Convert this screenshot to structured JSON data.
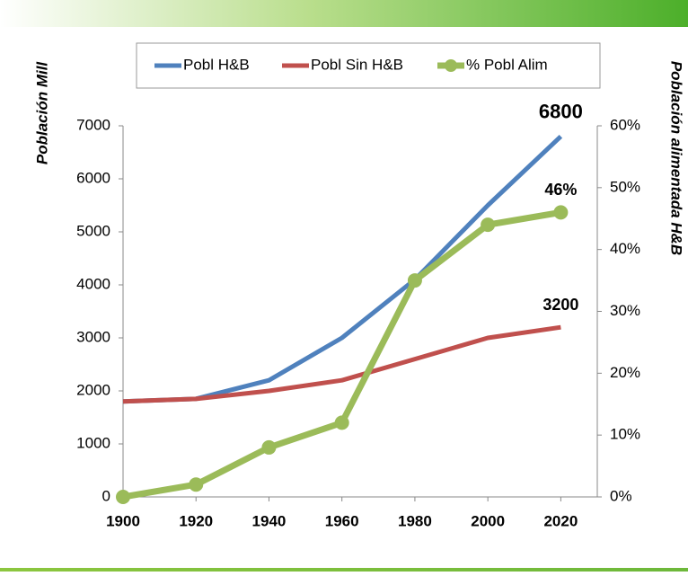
{
  "chart_data": {
    "type": "line",
    "y_label": "Población Mill",
    "y2_label": "Población alimentada H&B",
    "x": [
      1900,
      1920,
      1940,
      1960,
      1980,
      2000,
      2020
    ],
    "xlim": [
      1900,
      2030
    ],
    "xticks": [
      1900,
      1920,
      1940,
      1960,
      1980,
      2000,
      2020
    ],
    "ylim": [
      0,
      7000
    ],
    "yticks": [
      0,
      1000,
      2000,
      3000,
      4000,
      5000,
      6000,
      7000
    ],
    "y2lim": [
      0,
      60
    ],
    "y2ticks": [
      {
        "value": 0,
        "label": "0%"
      },
      {
        "value": 10,
        "label": "10%"
      },
      {
        "value": 20,
        "label": "20%"
      },
      {
        "value": 30,
        "label": "30%"
      },
      {
        "value": 40,
        "label": "40%"
      },
      {
        "value": 50,
        "label": "50%"
      },
      {
        "value": 60,
        "label": "60%"
      }
    ],
    "legend": "top",
    "series": [
      {
        "name": "Pobl H&B",
        "color": "#4f81bd",
        "values": [
          1800,
          1850,
          2200,
          3000,
          4100,
          5500,
          6800
        ],
        "value_labels": [
          null,
          null,
          null,
          null,
          null,
          null,
          "6800"
        ]
      },
      {
        "name": "Pobl Sin H&B",
        "color": "#c0504d",
        "values": [
          1800,
          1850,
          2000,
          2200,
          2600,
          3000,
          3200
        ],
        "value_labels": [
          null,
          null,
          null,
          null,
          null,
          null,
          "3200"
        ]
      },
      {
        "name": "% Pobl Alim",
        "color": "#9bbb59",
        "axis": "y2",
        "marker": "circle",
        "values": [
          0,
          2,
          8,
          12,
          35,
          44,
          46
        ],
        "value_labels": [
          null,
          null,
          null,
          null,
          null,
          null,
          "46%"
        ]
      }
    ]
  }
}
